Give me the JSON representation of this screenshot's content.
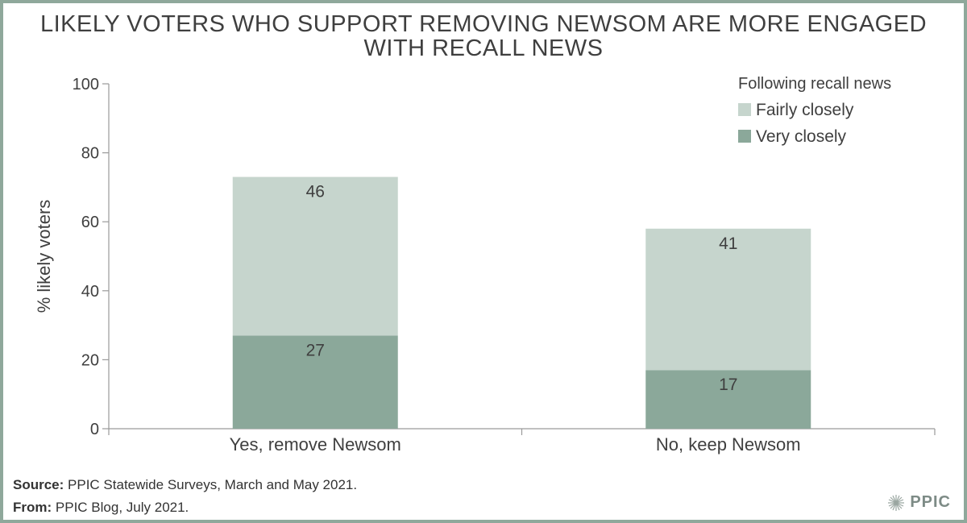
{
  "title_line1": "LIKELY VOTERS WHO SUPPORT REMOVING NEWSOM ARE MORE ENGAGED",
  "title_line2": "WITH RECALL NEWS",
  "footer": {
    "source_label": "Source:",
    "source_text": "PPIC Statewide Surveys, March and May 2021.",
    "from_label": "From:",
    "from_text": "PPIC Blog, July 2021."
  },
  "logo_text": "PPIC",
  "colors": {
    "fairly": "#c6d5cd",
    "very": "#8ba89a",
    "frame": "#8fa89b"
  },
  "chart_data": {
    "type": "bar",
    "stacked": true,
    "categories": [
      "Yes, remove Newsom",
      "No, keep Newsom"
    ],
    "series": [
      {
        "name": "Very closely",
        "values": [
          27,
          17
        ]
      },
      {
        "name": "Fairly closely",
        "values": [
          46,
          41
        ]
      }
    ],
    "ylabel": "% likely voters",
    "ylim": [
      0,
      100
    ],
    "yticks": [
      0,
      20,
      40,
      60,
      80,
      100
    ],
    "legend_title": "Following recall news",
    "legend_order": [
      "Fairly closely",
      "Very closely"
    ],
    "legend_position": "top-right",
    "grid": false
  }
}
